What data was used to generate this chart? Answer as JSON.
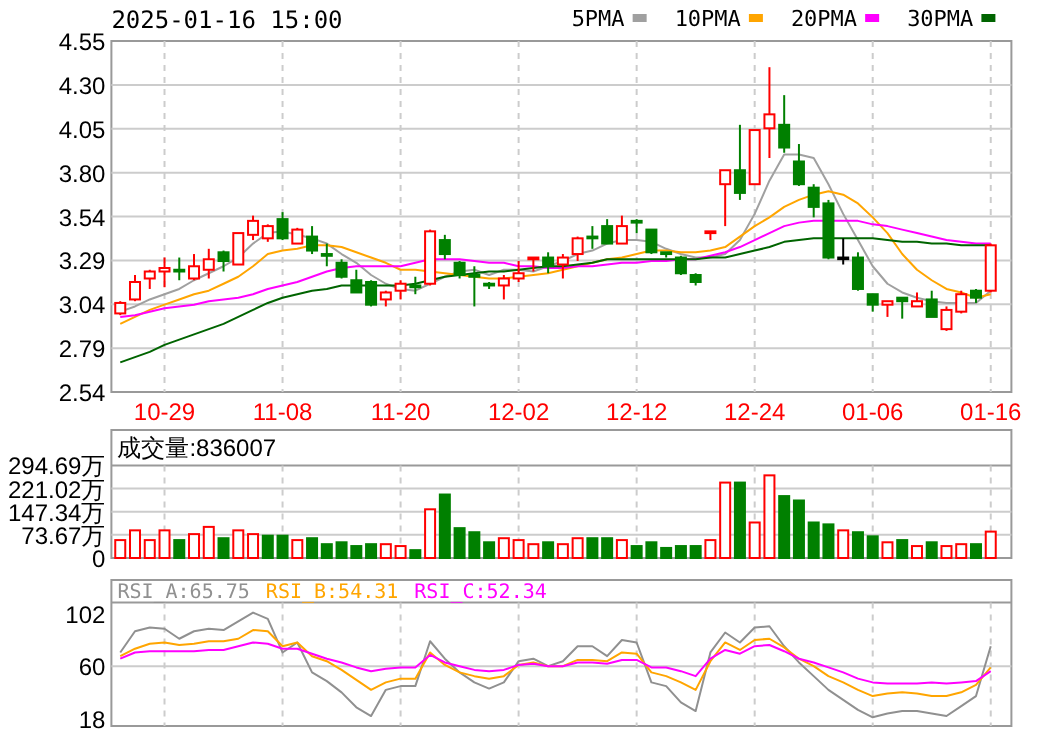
{
  "chart_data": [
    {
      "type": "candlestick",
      "title": "2025-01-16 15:00",
      "legend": "top right",
      "grid": true,
      "categories": [
        null,
        null,
        null,
        "10-29",
        null,
        null,
        null,
        null,
        null,
        null,
        null,
        "11-08",
        null,
        null,
        null,
        null,
        null,
        null,
        null,
        "11-20",
        null,
        null,
        null,
        null,
        null,
        null,
        null,
        "12-02",
        null,
        null,
        null,
        null,
        null,
        null,
        null,
        "12-12",
        null,
        null,
        null,
        null,
        null,
        null,
        null,
        "12-24",
        null,
        null,
        null,
        null,
        null,
        null,
        null,
        "01-06",
        null,
        null,
        null,
        null,
        null,
        null,
        null,
        "01-16"
      ],
      "ylim": [
        2.54,
        4.55
      ],
      "yticks": [
        2.54,
        {
          "value": 2.79125,
          "label": "2.79"
        },
        {
          "value": 3.0425,
          "label": "3.04"
        },
        {
          "value": 3.29375,
          "label": "3.29"
        },
        {
          "value": 3.545,
          "label": "3.54"
        },
        {
          "value": 3.79625,
          "label": "3.80"
        },
        {
          "value": 4.0475,
          "label": "4.05"
        },
        {
          "value": 4.29875,
          "label": "4.30"
        },
        4.55
      ],
      "ohlc": [
        [
          2.99,
          3.06,
          2.98,
          3.05
        ],
        [
          3.07,
          3.21,
          3.06,
          3.17
        ],
        [
          3.19,
          3.24,
          3.13,
          3.23
        ],
        [
          3.23,
          3.31,
          3.14,
          3.25
        ],
        [
          3.24,
          3.31,
          3.18,
          3.23
        ],
        [
          3.19,
          3.33,
          3.18,
          3.26
        ],
        [
          3.24,
          3.36,
          3.19,
          3.3
        ],
        [
          3.34,
          3.35,
          3.23,
          3.29
        ],
        [
          3.27,
          3.45,
          3.27,
          3.45
        ],
        [
          3.44,
          3.55,
          3.41,
          3.52
        ],
        [
          3.42,
          3.5,
          3.4,
          3.49
        ],
        [
          3.53,
          3.57,
          3.41,
          3.42
        ],
        [
          3.39,
          3.48,
          3.39,
          3.47
        ],
        [
          3.43,
          3.49,
          3.33,
          3.35
        ],
        [
          3.33,
          3.39,
          3.26,
          3.32
        ],
        [
          3.28,
          3.3,
          3.19,
          3.2
        ],
        [
          3.18,
          3.24,
          3.11,
          3.11
        ],
        [
          3.17,
          3.18,
          3.03,
          3.04
        ],
        [
          3.07,
          3.12,
          3.03,
          3.11
        ],
        [
          3.12,
          3.18,
          3.07,
          3.16
        ],
        [
          3.15,
          3.2,
          3.1,
          3.14
        ],
        [
          3.16,
          3.47,
          3.15,
          3.46
        ],
        [
          3.41,
          3.44,
          3.3,
          3.33
        ],
        [
          3.28,
          3.29,
          3.19,
          3.21
        ],
        [
          3.21,
          3.26,
          3.03,
          3.2
        ],
        [
          3.16,
          3.17,
          3.13,
          3.15
        ],
        [
          3.15,
          3.21,
          3.07,
          3.19
        ],
        [
          3.19,
          3.29,
          3.17,
          3.22
        ],
        [
          3.3,
          3.31,
          3.23,
          3.31
        ],
        [
          3.31,
          3.34,
          3.22,
          3.26
        ],
        [
          3.27,
          3.33,
          3.19,
          3.31
        ],
        [
          3.33,
          3.43,
          3.29,
          3.42
        ],
        [
          3.43,
          3.49,
          3.36,
          3.42
        ],
        [
          3.49,
          3.53,
          3.39,
          3.39
        ],
        [
          3.39,
          3.55,
          3.39,
          3.49
        ],
        [
          3.52,
          3.53,
          3.45,
          3.51
        ],
        [
          3.47,
          3.47,
          3.33,
          3.34
        ],
        [
          3.34,
          3.34,
          3.31,
          3.33
        ],
        [
          3.31,
          3.32,
          3.21,
          3.22
        ],
        [
          3.21,
          3.22,
          3.15,
          3.17
        ],
        [
          3.45,
          3.46,
          3.41,
          3.46
        ],
        [
          3.73,
          3.81,
          3.49,
          3.81
        ],
        [
          3.81,
          4.07,
          3.64,
          3.68
        ],
        [
          3.73,
          4.04,
          3.73,
          4.04
        ],
        [
          4.05,
          4.4,
          3.88,
          4.13
        ],
        [
          4.07,
          4.24,
          3.91,
          3.94
        ],
        [
          3.86,
          3.96,
          3.72,
          3.73
        ],
        [
          3.71,
          3.73,
          3.54,
          3.6
        ],
        [
          3.62,
          3.64,
          3.3,
          3.31
        ],
        [
          3.31,
          3.42,
          3.27,
          3.31
        ],
        [
          3.31,
          3.34,
          3.12,
          3.13
        ],
        [
          3.1,
          3.1,
          3.0,
          3.04
        ],
        [
          3.04,
          3.06,
          2.97,
          3.06
        ],
        [
          3.08,
          3.08,
          2.96,
          3.06
        ],
        [
          3.03,
          3.11,
          3.03,
          3.06
        ],
        [
          3.07,
          3.12,
          2.97,
          2.97
        ],
        [
          2.9,
          3.03,
          2.89,
          3.01
        ],
        [
          3.0,
          3.12,
          2.99,
          3.1
        ],
        [
          3.12,
          3.13,
          3.05,
          3.08
        ],
        [
          3.12,
          3.39,
          3.11,
          3.38
        ]
      ],
      "colors": [
        "#ff0000",
        "#ff0000",
        "#ff0000",
        "#ff0000",
        "#008000",
        "#ff0000",
        "#ff0000",
        "#008000",
        "#ff0000",
        "#ff0000",
        "#ff0000",
        "#008000",
        "#ff0000",
        "#008000",
        "#008000",
        "#008000",
        "#008000",
        "#008000",
        "#ff0000",
        "#ff0000",
        "#008000",
        "#ff0000",
        "#008000",
        "#008000",
        "#008000",
        "#008000",
        "#ff0000",
        "#ff0000",
        "#ff0000",
        "#008000",
        "#ff0000",
        "#ff0000",
        "#008000",
        "#008000",
        "#ff0000",
        "#008000",
        "#008000",
        "#008000",
        "#008000",
        "#008000",
        "#ff0000",
        "#ff0000",
        "#008000",
        "#ff0000",
        "#ff0000",
        "#008000",
        "#008000",
        "#008000",
        "#008000",
        "#000000",
        "#008000",
        "#008000",
        "#ff0000",
        "#008000",
        "#ff0000",
        "#008000",
        "#ff0000",
        "#ff0000",
        "#008000",
        "#ff0000"
      ],
      "series": [
        {
          "name": "5PMA",
          "type": "line",
          "color": "#a0a0a0",
          "values": [
            3.0,
            3.03,
            3.07,
            3.1,
            3.13,
            3.18,
            3.22,
            3.26,
            3.31,
            3.39,
            3.45,
            3.46,
            3.44,
            3.42,
            3.39,
            3.33,
            3.28,
            3.21,
            3.16,
            3.13,
            3.12,
            3.16,
            3.2,
            3.23,
            3.24,
            3.21,
            3.24,
            3.24,
            3.23,
            3.26,
            3.29,
            3.33,
            3.35,
            3.39,
            3.41,
            3.41,
            3.4,
            3.36,
            3.33,
            3.31,
            3.31,
            3.33,
            3.41,
            3.56,
            3.75,
            3.9,
            3.9,
            3.88,
            3.73,
            3.56,
            3.41,
            3.26,
            3.16,
            3.11,
            3.08,
            3.06,
            3.05,
            3.05,
            3.05,
            3.12
          ]
        },
        {
          "name": "10PMA",
          "type": "line",
          "color": "#ffa500",
          "values": [
            2.93,
            2.97,
            3.01,
            3.04,
            3.07,
            3.1,
            3.12,
            3.16,
            3.2,
            3.26,
            3.33,
            3.35,
            3.36,
            3.38,
            3.38,
            3.37,
            3.34,
            3.31,
            3.28,
            3.24,
            3.24,
            3.23,
            3.22,
            3.21,
            3.2,
            3.19,
            3.19,
            3.2,
            3.21,
            3.22,
            3.24,
            3.26,
            3.28,
            3.3,
            3.31,
            3.33,
            3.35,
            3.35,
            3.34,
            3.34,
            3.35,
            3.37,
            3.43,
            3.49,
            3.54,
            3.6,
            3.64,
            3.67,
            3.69,
            3.67,
            3.62,
            3.54,
            3.45,
            3.33,
            3.24,
            3.18,
            3.13,
            3.11,
            3.08,
            3.1
          ]
        },
        {
          "name": "20PMA",
          "type": "line",
          "color": "#ff00ff",
          "values": [
            2.97,
            2.98,
            3.0,
            3.02,
            3.03,
            3.04,
            3.06,
            3.07,
            3.08,
            3.1,
            3.13,
            3.15,
            3.17,
            3.2,
            3.23,
            3.25,
            3.26,
            3.26,
            3.26,
            3.26,
            3.28,
            3.3,
            3.3,
            3.3,
            3.29,
            3.28,
            3.28,
            3.26,
            3.26,
            3.25,
            3.25,
            3.26,
            3.26,
            3.27,
            3.28,
            3.28,
            3.29,
            3.29,
            3.3,
            3.3,
            3.32,
            3.34,
            3.37,
            3.41,
            3.45,
            3.49,
            3.51,
            3.52,
            3.52,
            3.52,
            3.52,
            3.5,
            3.49,
            3.47,
            3.45,
            3.43,
            3.41,
            3.4,
            3.39,
            3.39
          ]
        },
        {
          "name": "30PMA",
          "type": "line",
          "color": "#006400",
          "values": [
            2.71,
            2.74,
            2.77,
            2.81,
            2.84,
            2.87,
            2.9,
            2.93,
            2.97,
            3.01,
            3.05,
            3.08,
            3.1,
            3.12,
            3.13,
            3.15,
            3.15,
            3.15,
            3.15,
            3.15,
            3.16,
            3.18,
            3.2,
            3.21,
            3.22,
            3.23,
            3.23,
            3.24,
            3.25,
            3.26,
            3.26,
            3.27,
            3.28,
            3.3,
            3.3,
            3.3,
            3.3,
            3.3,
            3.3,
            3.3,
            3.31,
            3.31,
            3.33,
            3.35,
            3.37,
            3.4,
            3.41,
            3.42,
            3.42,
            3.42,
            3.42,
            3.42,
            3.41,
            3.4,
            3.4,
            3.39,
            3.39,
            3.38,
            3.38,
            3.38
          ]
        }
      ]
    },
    {
      "type": "bar",
      "title": "成交量:836007",
      "grid": true,
      "tick_labels": "y",
      "categories": [
        null,
        null,
        null,
        null,
        null,
        null,
        null,
        null,
        null,
        null,
        null,
        null,
        null,
        null,
        null,
        null,
        null,
        null,
        null,
        null,
        null,
        null,
        null,
        null,
        null,
        null,
        null,
        null,
        null,
        null,
        null,
        null,
        null,
        null,
        null,
        null,
        null,
        null,
        null,
        null,
        null,
        null,
        null,
        null,
        null,
        null,
        null,
        null,
        null,
        null,
        null,
        null,
        null,
        null,
        null,
        null,
        null,
        null,
        null,
        null
      ],
      "ylim": [
        0,
        294.69
      ],
      "yticks": [
        0,
        {
          "value": 73.67,
          "label": "73.67万"
        },
        {
          "value": 147.34,
          "label": "147.34万"
        },
        {
          "value": 221.02,
          "label": "221.02万"
        },
        {
          "value": 294.69,
          "label": "294.69万"
        }
      ],
      "values": [
        57,
        88,
        57,
        88,
        57,
        76,
        99,
        63,
        88,
        76,
        71,
        71,
        57,
        63,
        44,
        50,
        38,
        44,
        44,
        38,
        25,
        155,
        202,
        95,
        82,
        50,
        63,
        57,
        44,
        50,
        44,
        63,
        63,
        63,
        57,
        38,
        50,
        32,
        38,
        38,
        57,
        240,
        240,
        113,
        263,
        197,
        183,
        113,
        107,
        88,
        82,
        69,
        50,
        57,
        38,
        50,
        38,
        44,
        44,
        84
      ],
      "colors": [
        "#ff0000",
        "#ff0000",
        "#ff0000",
        "#ff0000",
        "#008000",
        "#ff0000",
        "#ff0000",
        "#008000",
        "#ff0000",
        "#ff0000",
        "#008000",
        "#008000",
        "#ff0000",
        "#008000",
        "#008000",
        "#008000",
        "#008000",
        "#008000",
        "#ff0000",
        "#ff0000",
        "#008000",
        "#ff0000",
        "#008000",
        "#008000",
        "#008000",
        "#008000",
        "#ff0000",
        "#ff0000",
        "#ff0000",
        "#008000",
        "#ff0000",
        "#ff0000",
        "#008000",
        "#008000",
        "#ff0000",
        "#008000",
        "#008000",
        "#008000",
        "#008000",
        "#008000",
        "#ff0000",
        "#ff0000",
        "#008000",
        "#ff0000",
        "#ff0000",
        "#008000",
        "#008000",
        "#008000",
        "#008000",
        "#ff0000",
        "#008000",
        "#008000",
        "#ff0000",
        "#008000",
        "#ff0000",
        "#008000",
        "#ff0000",
        "#ff0000",
        "#008000",
        "#ff0000"
      ]
    },
    {
      "type": "line",
      "legend": "top left",
      "grid": "x",
      "tick_labels": "y",
      "categories": [
        null,
        null,
        null,
        null,
        null,
        null,
        null,
        null,
        null,
        null,
        null,
        null,
        null,
        null,
        null,
        null,
        null,
        null,
        null,
        null,
        null,
        null,
        null,
        null,
        null,
        null,
        null,
        null,
        null,
        null,
        null,
        null,
        null,
        null,
        null,
        null,
        null,
        null,
        null,
        null,
        null,
        null,
        null,
        null,
        null,
        null,
        null,
        null,
        null,
        null,
        null,
        null,
        null,
        null,
        null,
        null,
        null,
        null,
        null,
        null
      ],
      "ylim": [
        12,
        111
      ],
      "yticks": [
        18,
        60,
        102
      ],
      "ref_lines": [
        {
          "axis": "y",
          "value": 60,
          "color": "#cccccc"
        }
      ],
      "series": [
        {
          "name": "RSI_A:65.75",
          "color": "#909090",
          "values": [
            71,
            88,
            91,
            90,
            82,
            88,
            90,
            89,
            96,
            103,
            98,
            71,
            79,
            55,
            48,
            39,
            27,
            20,
            41,
            44,
            44,
            80,
            66,
            55,
            47,
            42,
            47,
            64,
            66,
            60,
            64,
            76,
            76,
            68,
            81,
            79,
            47,
            44,
            31,
            24,
            71,
            87,
            79,
            91,
            92,
            76,
            63,
            52,
            41,
            33,
            25,
            19,
            22,
            24,
            24,
            22,
            20,
            28,
            36,
            76
          ]
        },
        {
          "name": "RSI_B:54.31",
          "color": "#ffa500",
          "values": [
            68,
            74,
            78,
            79,
            77,
            78,
            80,
            80,
            82,
            89,
            88,
            76,
            79,
            68,
            64,
            57,
            49,
            41,
            47,
            50,
            50,
            71,
            61,
            55,
            52,
            50,
            52,
            61,
            63,
            60,
            60,
            65,
            65,
            64,
            71,
            70,
            55,
            52,
            47,
            41,
            64,
            79,
            73,
            81,
            82,
            75,
            66,
            60,
            52,
            47,
            41,
            36,
            38,
            39,
            38,
            36,
            36,
            39,
            45,
            59
          ]
        },
        {
          "name": "RSI_C:52.34",
          "color": "#ff00ff",
          "values": [
            66,
            71,
            72,
            72,
            72,
            72,
            73,
            73,
            76,
            79,
            78,
            74,
            74,
            70,
            66,
            63,
            59,
            56,
            58,
            59,
            59,
            69,
            63,
            60,
            57,
            56,
            57,
            61,
            62,
            60,
            60,
            63,
            63,
            62,
            65,
            65,
            59,
            59,
            56,
            52,
            66,
            73,
            70,
            76,
            77,
            72,
            66,
            63,
            59,
            55,
            50,
            47,
            46,
            46,
            46,
            47,
            46,
            47,
            48,
            56
          ]
        }
      ]
    }
  ]
}
